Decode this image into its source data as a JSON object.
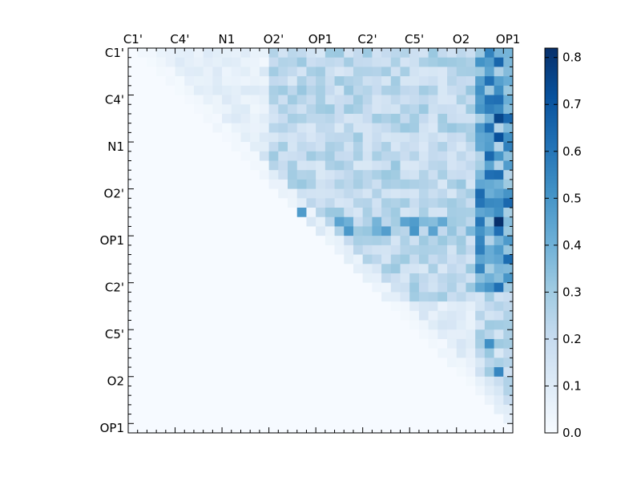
{
  "chart_data": {
    "type": "heatmap",
    "title": "",
    "xlabel": "",
    "ylabel": "",
    "x_tick_labels": [
      "C1'",
      "C4'",
      "N1",
      "O2'",
      "OP1",
      "C2'",
      "C5'",
      "O2",
      "OP1"
    ],
    "y_tick_labels": [
      "C1'",
      "C4'",
      "N1",
      "O2'",
      "OP1",
      "C2'",
      "C5'",
      "O2",
      "OP1"
    ],
    "x_axis_position": "top",
    "grid_size": 41,
    "major_tick_every": 5,
    "colormap": "Blues",
    "colormap_stops": [
      "#f7fbff",
      "#deebf7",
      "#c6dbef",
      "#9ecae1",
      "#6baed6",
      "#4292c6",
      "#2171b5",
      "#08519c",
      "#08306b"
    ],
    "value_range": [
      0.0,
      0.82
    ],
    "colorbar": {
      "position": "right",
      "ticks": [
        "0.0",
        "0.1",
        "0.2",
        "0.3",
        "0.4",
        "0.5",
        "0.6",
        "0.7",
        "0.8"
      ],
      "tick_values": [
        0.0,
        0.1,
        0.2,
        0.3,
        0.4,
        0.5,
        0.6,
        0.7,
        0.8
      ]
    },
    "grid": false,
    "structure": "upper triangle populated (column > row); lower triangle near zero",
    "cells": {
      "approx_seed": 7,
      "regions": [
        {
          "rows": [
            0,
            7
          ],
          "cols": [
            1,
            12
          ],
          "base": 0.08
        },
        {
          "rows": [
            0,
            40
          ],
          "cols": [
            15,
            40
          ],
          "base": 0.22
        },
        {
          "rows": [
            18,
            19
          ],
          "cols": [
            18,
            40
          ],
          "base": 0.35
        },
        {
          "rows": [
            0,
            25
          ],
          "cols": [
            37,
            40
          ],
          "base": 0.45
        }
      ],
      "hotspots": [
        {
          "row": 18,
          "col": 39,
          "value": 0.82
        },
        {
          "row": 7,
          "col": 39,
          "value": 0.75
        },
        {
          "row": 9,
          "col": 39,
          "value": 0.72
        },
        {
          "row": 1,
          "col": 39,
          "value": 0.65
        },
        {
          "row": 5,
          "col": 39,
          "value": 0.62
        },
        {
          "row": 18,
          "col": 37,
          "value": 0.6
        },
        {
          "row": 17,
          "col": 18,
          "value": 0.48
        },
        {
          "row": 18,
          "col": 29,
          "value": 0.45
        },
        {
          "row": 25,
          "col": 38,
          "value": 0.5
        },
        {
          "row": 31,
          "col": 38,
          "value": 0.52
        },
        {
          "row": 34,
          "col": 39,
          "value": 0.55
        }
      ]
    }
  }
}
